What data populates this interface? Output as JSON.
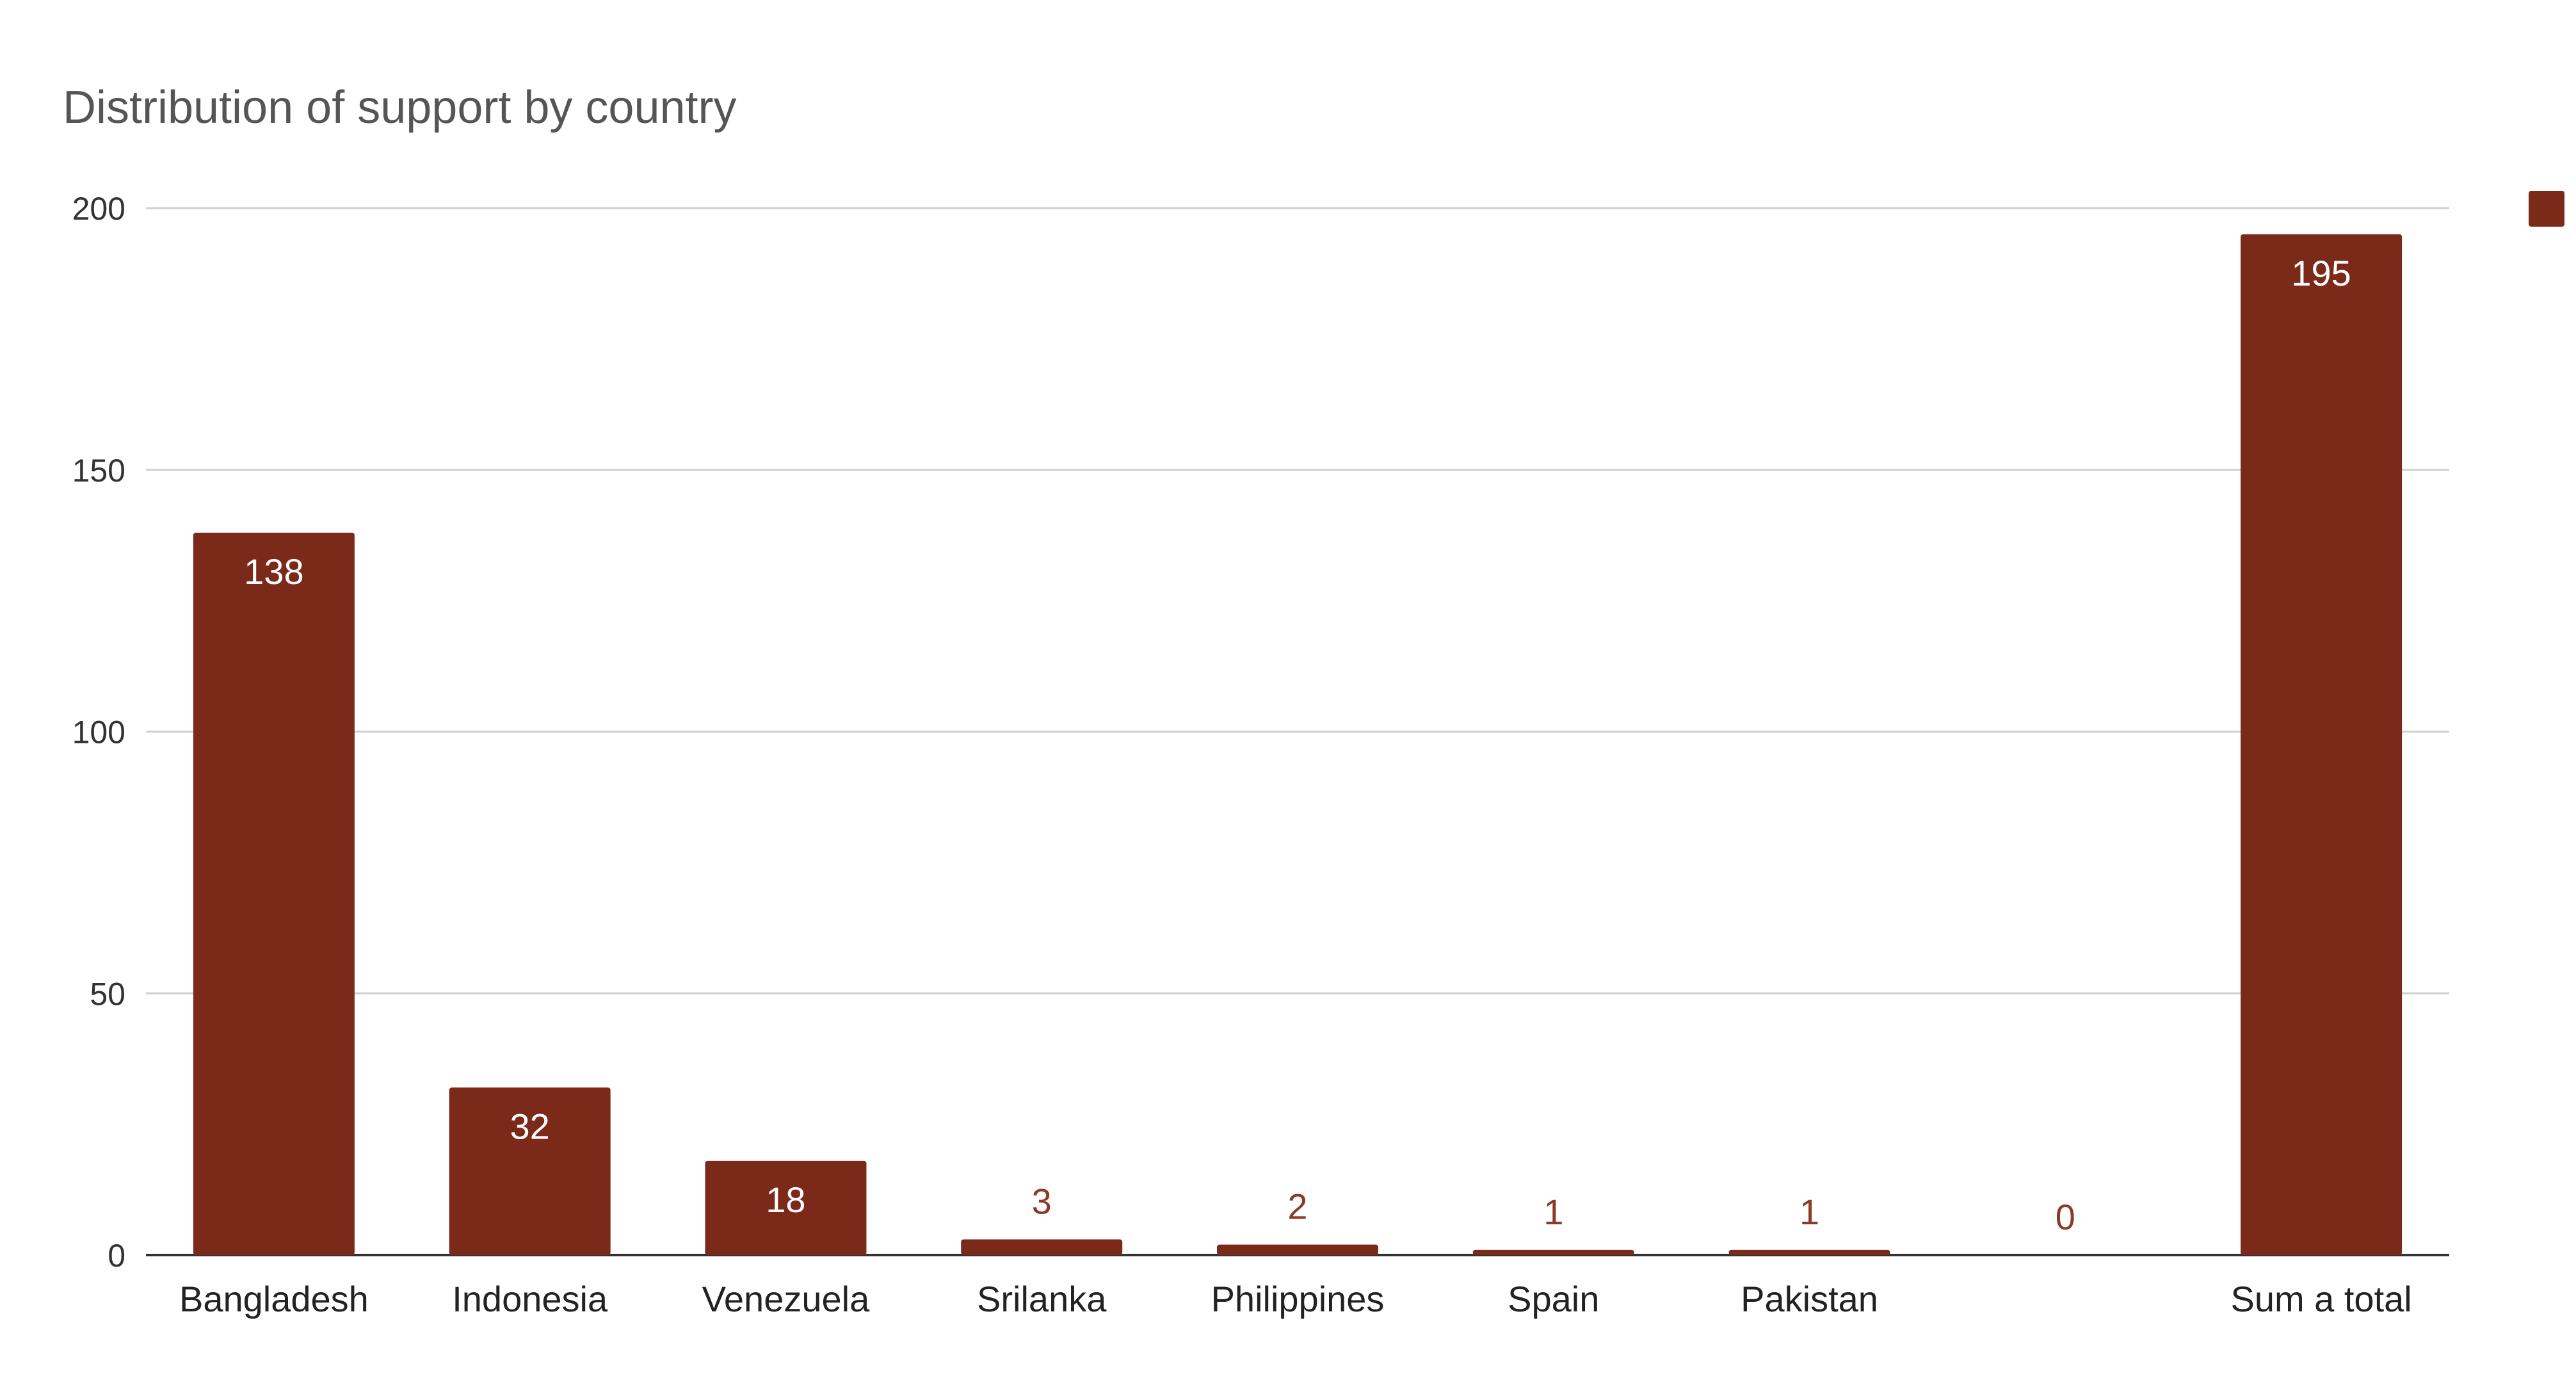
{
  "chart_data": {
    "type": "bar",
    "title": "Distribution of support by country",
    "categories": [
      "Bangladesh",
      "Indonesia",
      "Venezuela",
      "Srilanka",
      "Philippines",
      "Spain",
      "Pakistan",
      "",
      "Sum a total"
    ],
    "values": [
      138,
      32,
      18,
      3,
      2,
      1,
      1,
      0,
      195
    ],
    "data_labels": [
      "138",
      "32",
      "18",
      "3",
      "2",
      "1",
      "1",
      "0",
      "195"
    ],
    "y_ticks": [
      "0",
      "50",
      "100",
      "150",
      "200"
    ],
    "ylim": [
      0,
      200
    ],
    "xlabel": "",
    "ylabel": "",
    "grid": true,
    "legend": {
      "placement": "top-right",
      "entries": [
        ""
      ]
    },
    "colors": {
      "bar": "#7b2a1a",
      "inside_label": "#ffffff",
      "outside_label": "#8b3a28"
    }
  }
}
